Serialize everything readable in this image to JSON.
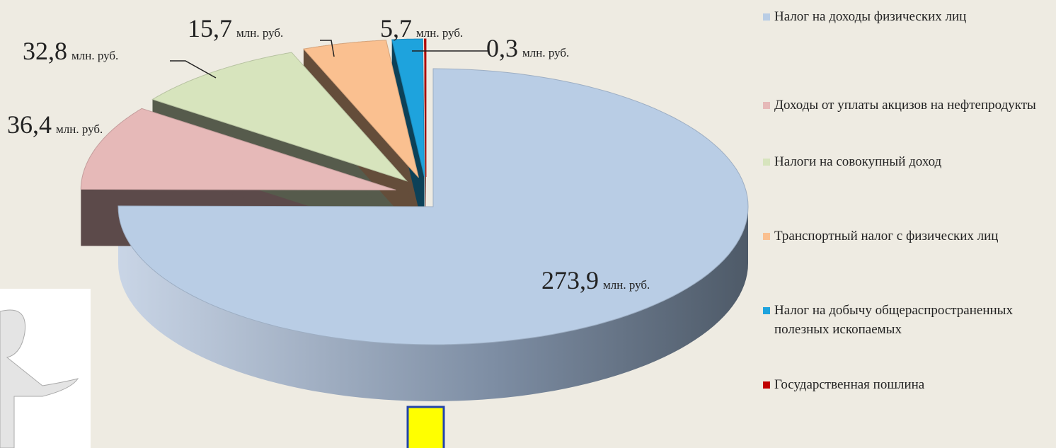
{
  "chart_data": {
    "type": "pie3d",
    "categories": [
      "Налог на доходы физических лиц",
      "Доходы от уплаты акцизов на нефтепродукты",
      "Налоги на совокупный доход",
      "Транспортный налог с физических лиц",
      "Налог на добычу общераспространенных полезных ископаемых",
      "Государственная пошлина"
    ],
    "values": [
      273.9,
      36.4,
      32.8,
      15.7,
      5.7,
      0.3
    ],
    "value_labels": [
      "273,9",
      "36,4",
      "32,8",
      "15,7",
      "5,7",
      "0,3"
    ],
    "unit": "млн. руб.",
    "colors": [
      "#b9cde5",
      "#e6b9b8",
      "#d7e4bd",
      "#fac090",
      "#1ea3dd",
      "#c00000"
    ],
    "legend": "right"
  }
}
